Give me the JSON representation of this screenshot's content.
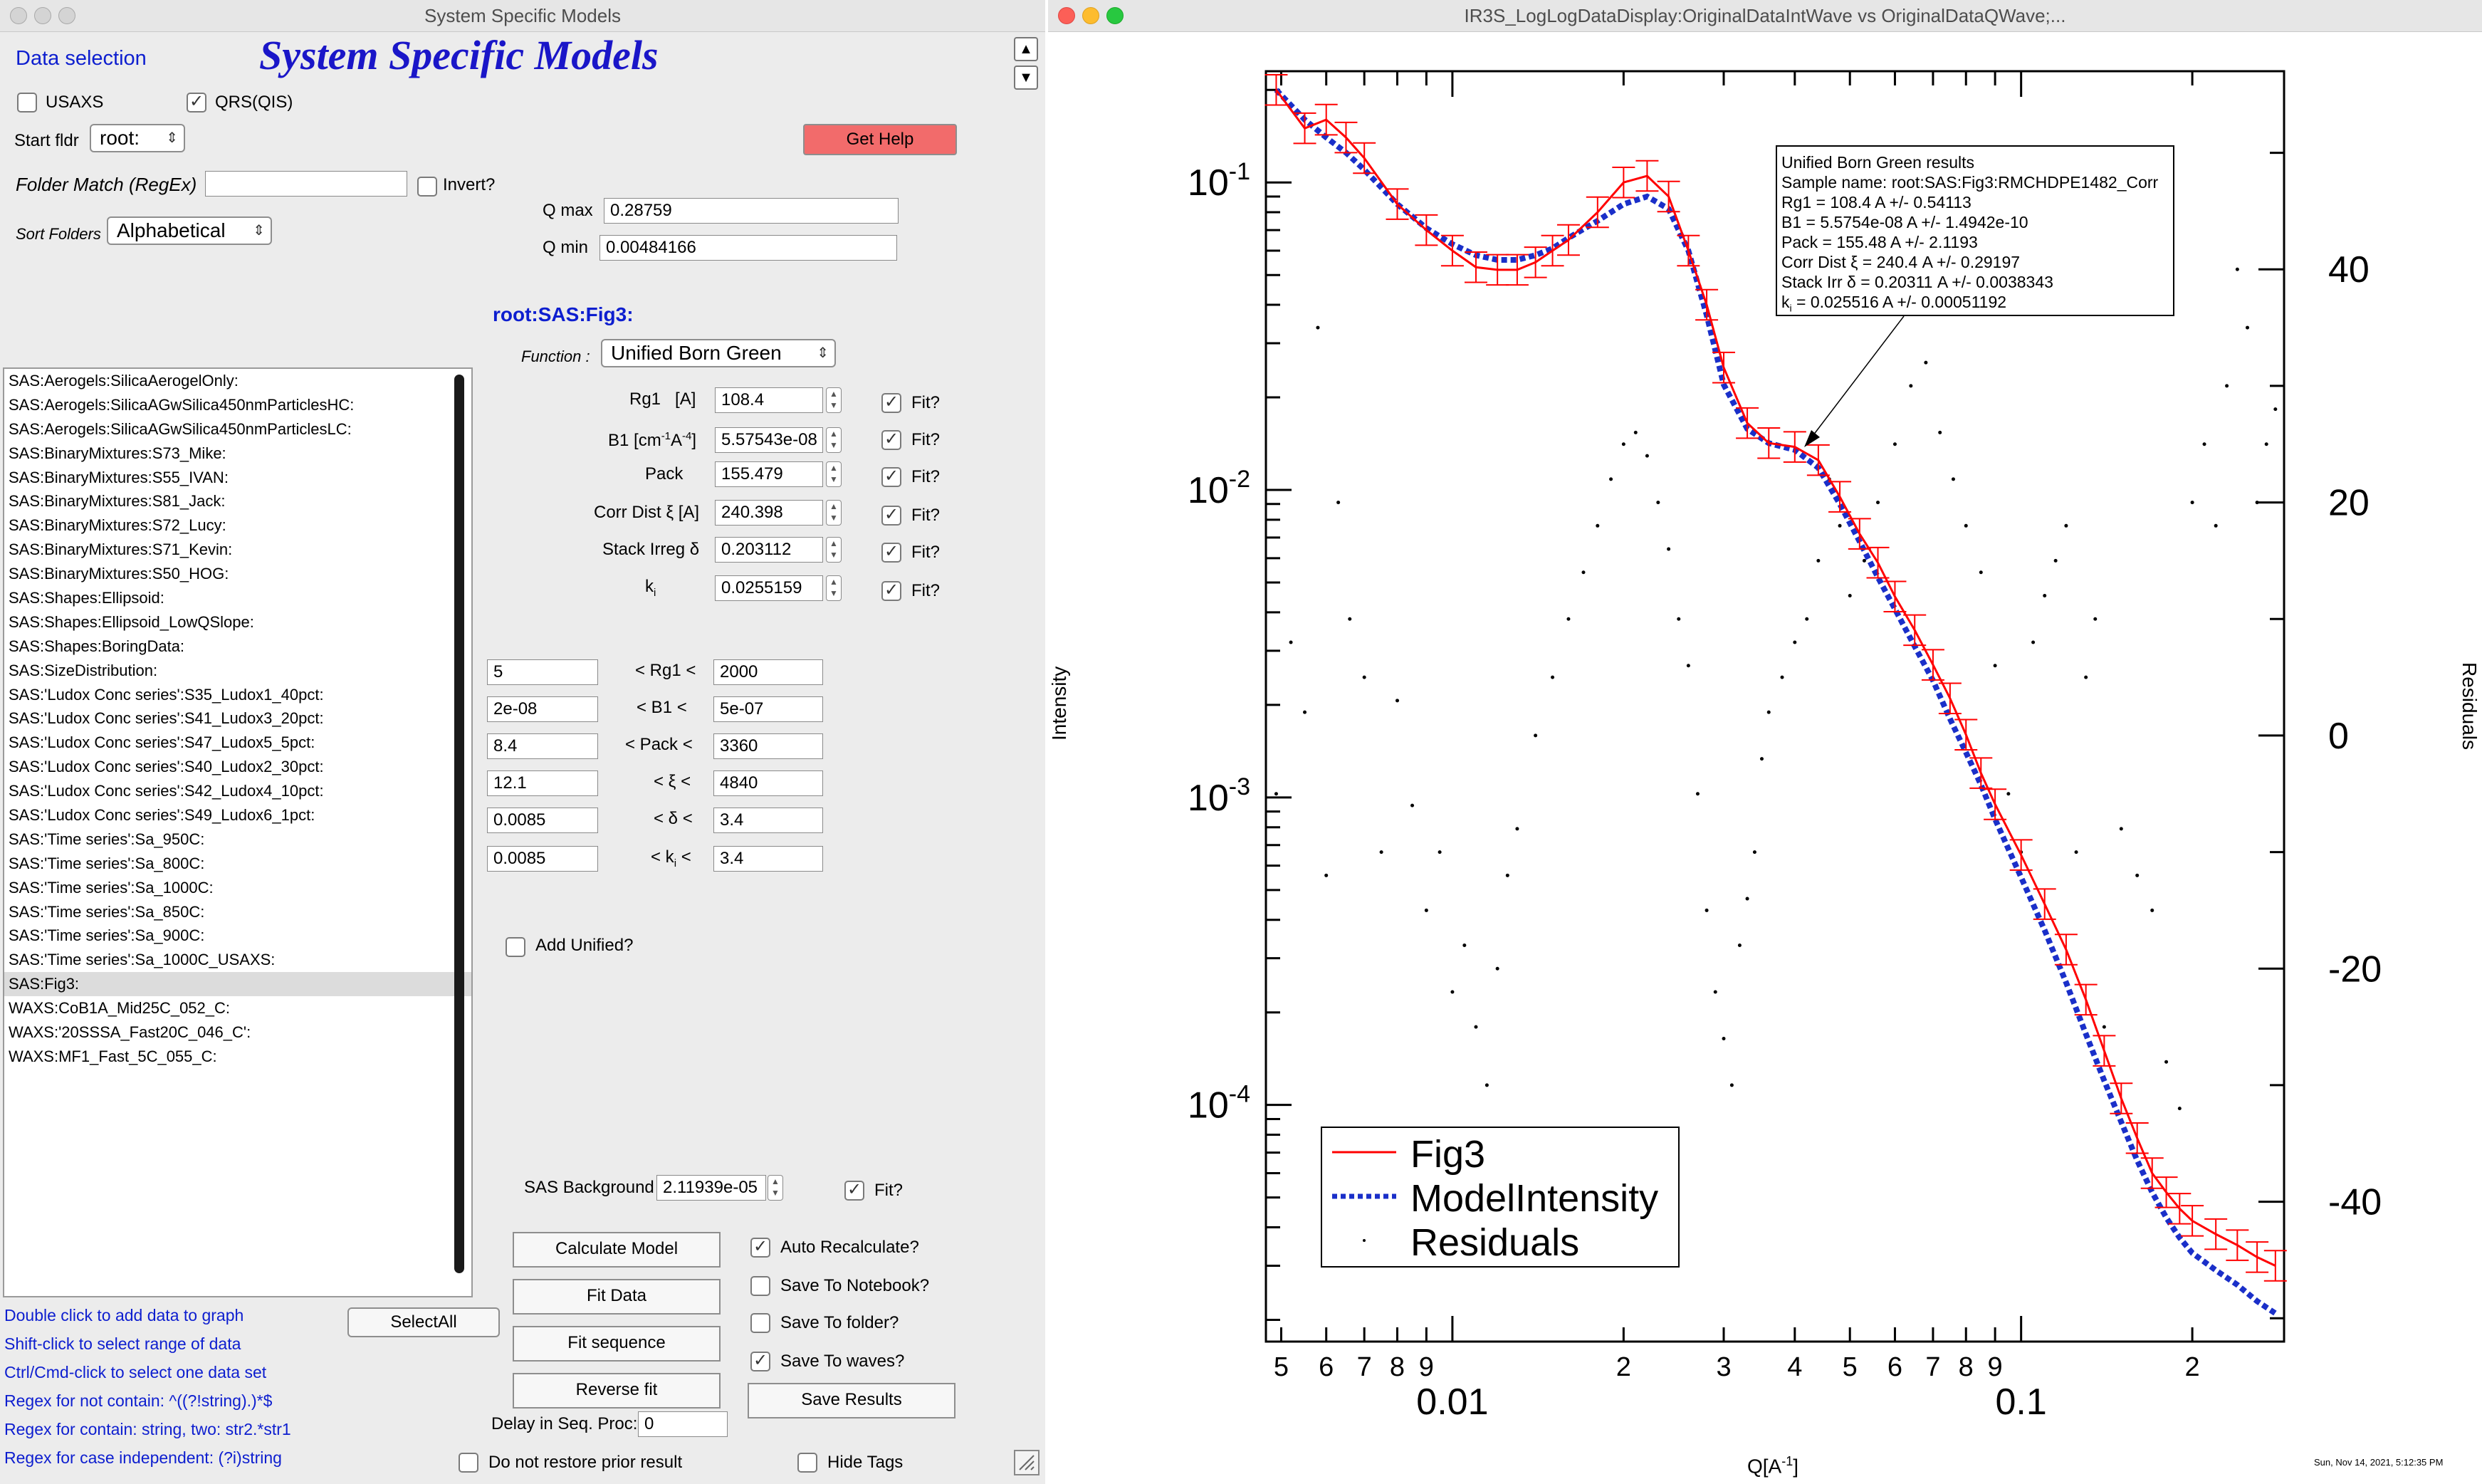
{
  "left_window": {
    "title": "System Specific Models",
    "header": "System Specific Models",
    "data_selection_label": "Data selection",
    "usaxs_label": "USAXS",
    "usaxs_checked": false,
    "qrs_label": "QRS(QIS)",
    "qrs_checked": true,
    "start_folder_label": "Start fldr",
    "start_folder_value": "root:",
    "get_help_label": "Get Help",
    "folder_match_label": "Folder Match (RegEx)",
    "folder_match_value": "",
    "invert_label": "Invert?",
    "sort_folders_label": "Sort Folders",
    "sort_folders_value": "Alphabetical",
    "qmax_label": "Q max",
    "qmax_value": "0.28759",
    "qmin_label": "Q min",
    "qmin_value": "0.00484166",
    "current_folder": "root:SAS:Fig3:",
    "function_label": "Function :",
    "function_value": "Unified Born Green",
    "fit_label": "Fit?",
    "params": [
      {
        "label_main": "Rg1",
        "label_sub": "[A]",
        "value": "108.4",
        "fit": true
      },
      {
        "label_main": "B1 [cm",
        "label_sub": "-1",
        "label_main2": "A",
        "label_sub2": "-4",
        "label_end": "]",
        "value": "5.57543e-08",
        "fit": true
      },
      {
        "label_main": "Pack",
        "value": "155.479",
        "fit": true
      },
      {
        "label_main": "Corr Dist ξ [A]",
        "value": "240.398",
        "fit": true
      },
      {
        "label_main": "Stack Irreg δ",
        "value": "0.203112",
        "fit": true
      },
      {
        "label_main": "k",
        "label_sub": "i",
        "value": "0.0255159",
        "fit": true
      }
    ],
    "limits": [
      {
        "low": "5",
        "label": "< Rg1 <",
        "high": "2000"
      },
      {
        "low": "2e-08",
        "label": "< B1 <",
        "high": "5e-07"
      },
      {
        "low": "8.4",
        "label": "< Pack <",
        "high": "3360"
      },
      {
        "low": "12.1",
        "label": "< ξ <",
        "high": "4840"
      },
      {
        "low": "0.0085",
        "label": "< δ <",
        "high": "3.4"
      },
      {
        "low": "0.0085",
        "label_pre": "< k",
        "label_sub": "i",
        "label_post": " <",
        "high": "3.4"
      }
    ],
    "add_unified_label": "Add Unified?",
    "add_unified_checked": false,
    "sas_background_label": "SAS Background",
    "sas_background_value": "2.11939e-05",
    "sas_background_fit": true,
    "data_list": [
      "SAS:Aerogels:SilicaAerogelOnly:",
      "SAS:Aerogels:SilicaAGwSilica450nmParticlesHC:",
      "SAS:Aerogels:SilicaAGwSilica450nmParticlesLC:",
      "SAS:BinaryMixtures:S73_Mike:",
      "SAS:BinaryMixtures:S55_IVAN:",
      "SAS:BinaryMixtures:S81_Jack:",
      "SAS:BinaryMixtures:S72_Lucy:",
      "SAS:BinaryMixtures:S71_Kevin:",
      "SAS:BinaryMixtures:S50_HOG:",
      "SAS:Shapes:Ellipsoid:",
      "SAS:Shapes:Ellipsoid_LowQSlope:",
      "SAS:Shapes:BoringData:",
      "SAS:SizeDistribution:",
      "SAS:'Ludox Conc series':S35_Ludox1_40pct:",
      "SAS:'Ludox Conc series':S41_Ludox3_20pct:",
      "SAS:'Ludox Conc series':S47_Ludox5_5pct:",
      "SAS:'Ludox Conc series':S40_Ludox2_30pct:",
      "SAS:'Ludox Conc series':S42_Ludox4_10pct:",
      "SAS:'Ludox Conc series':S49_Ludox6_1pct:",
      "SAS:'Time series':Sa_950C:",
      "SAS:'Time series':Sa_800C:",
      "SAS:'Time series':Sa_1000C:",
      "SAS:'Time series':Sa_850C:",
      "SAS:'Time series':Sa_900C:",
      "SAS:'Time series':Sa_1000C_USAXS:",
      "SAS:Fig3:",
      "WAXS:CoB1A_Mid25C_052_C:",
      "WAXS:'20SSSA_Fast20C_046_C':",
      "WAXS:MF1_Fast_5C_055_C:"
    ],
    "selected_index": 25,
    "hints": [
      "Double click to add data to graph",
      "Shift-click to select range of data",
      "Ctrl/Cmd-click to select one data set",
      "Regex for not contain: ^((?!string).)*$",
      "Regex for contain:  string, two: str2.*str1",
      "Regex for case independent:  (?i)string"
    ],
    "select_all_label": "SelectAll",
    "calculate_model_label": "Calculate Model",
    "fit_data_label": "Fit Data",
    "fit_sequence_label": "Fit sequence",
    "reverse_fit_label": "Reverse fit",
    "delay_label": "Delay in Seq. Proc:",
    "delay_value": "0",
    "auto_recalc_label": "Auto Recalculate?",
    "auto_recalc_checked": true,
    "save_notebook_label": "Save To Notebook?",
    "save_notebook_checked": false,
    "save_folder_label": "Save To folder?",
    "save_folder_checked": false,
    "save_waves_label": "Save To waves?",
    "save_waves_checked": true,
    "save_results_label": "Save Results",
    "no_restore_label": "Do not restore prior result",
    "no_restore_checked": false,
    "hide_tags_label": "Hide Tags",
    "hide_tags_checked": false
  },
  "right_window": {
    "title": "IR3S_LogLogDataDisplay:OriginalDataIntWave vs OriginalDataQWave;...",
    "timestamp": "Sun, Nov 14, 2021, 5:12:35 PM",
    "annotation": {
      "lines": [
        "Unified Born Green results",
        "Sample name: root:SAS:Fig3:RMCHDPE1482_Corr",
        "Rg1 = 108.4 A +/- 0.54113",
        "B1 = 5.5754e-08 A +/- 1.4942e-10",
        "Pack = 155.48 A +/- 2.1193",
        "Corr Dist ξ = 240.4 A +/- 0.29197",
        "Stack Irr  δ = 0.20311 A +/- 0.0038343"
      ],
      "last_line_k": "k",
      "last_line_sub": "i",
      "last_line_rest": " = 0.025516 A +/- 0.00051192"
    }
  },
  "chart_data": {
    "type": "line",
    "title": "",
    "xlabel_main": "Q[A",
    "xlabel_sup": "-1",
    "xlabel_end": "]",
    "ylabel": "Intensity",
    "y2label": "Residuals",
    "x_scale": "log",
    "y_scale": "log",
    "xlim": [
      0.0047,
      0.29
    ],
    "ylim": [
      1.7e-05,
      0.23
    ],
    "y2lim": [
      -52,
      57
    ],
    "x_major_ticks": [
      {
        "v": 0.01,
        "label": "0.01"
      },
      {
        "v": 0.1,
        "label": "0.1"
      }
    ],
    "x_minor_ticks": [
      {
        "v": 0.005,
        "label": "5"
      },
      {
        "v": 0.006,
        "label": "6"
      },
      {
        "v": 0.007,
        "label": "7"
      },
      {
        "v": 0.008,
        "label": "8"
      },
      {
        "v": 0.009,
        "label": "9"
      },
      {
        "v": 0.02,
        "label": "2"
      },
      {
        "v": 0.03,
        "label": "3"
      },
      {
        "v": 0.04,
        "label": "4"
      },
      {
        "v": 0.05,
        "label": "5"
      },
      {
        "v": 0.06,
        "label": "6"
      },
      {
        "v": 0.07,
        "label": "7"
      },
      {
        "v": 0.08,
        "label": "8"
      },
      {
        "v": 0.09,
        "label": "9"
      },
      {
        "v": 0.2,
        "label": "2"
      }
    ],
    "y_major_ticks": [
      {
        "v": 0.1,
        "base": "10",
        "exp": "-1"
      },
      {
        "v": 0.01,
        "base": "10",
        "exp": "-2"
      },
      {
        "v": 0.001,
        "base": "10",
        "exp": "-3"
      },
      {
        "v": 0.0001,
        "base": "10",
        "exp": "-4"
      }
    ],
    "y2_ticks": [
      {
        "v": 40,
        "label": "40"
      },
      {
        "v": 20,
        "label": "20"
      },
      {
        "v": 0,
        "label": "0"
      },
      {
        "v": -20,
        "label": "-20"
      },
      {
        "v": -40,
        "label": "-40"
      }
    ],
    "legend": [
      {
        "name": "Fig3",
        "color": "#ff0000",
        "style": "solid"
      },
      {
        "name": "ModelIntensity",
        "color": "#1a2fc9",
        "style": "dotted"
      },
      {
        "name": "Residuals",
        "color": "#000000",
        "style": "dot"
      }
    ],
    "series": [
      {
        "name": "Fig3",
        "color": "#ff0000",
        "x": [
          0.0049,
          0.0055,
          0.006,
          0.0065,
          0.007,
          0.008,
          0.009,
          0.01,
          0.011,
          0.012,
          0.013,
          0.014,
          0.015,
          0.016,
          0.018,
          0.02,
          0.022,
          0.024,
          0.026,
          0.028,
          0.03,
          0.033,
          0.036,
          0.04,
          0.044,
          0.048,
          0.052,
          0.056,
          0.06,
          0.065,
          0.07,
          0.075,
          0.08,
          0.085,
          0.09,
          0.1,
          0.11,
          0.12,
          0.13,
          0.14,
          0.15,
          0.16,
          0.17,
          0.18,
          0.19,
          0.2,
          0.22,
          0.24,
          0.26,
          0.28
        ],
        "y": [
          0.2,
          0.15,
          0.16,
          0.14,
          0.12,
          0.085,
          0.07,
          0.06,
          0.053,
          0.052,
          0.052,
          0.055,
          0.06,
          0.065,
          0.08,
          0.1,
          0.105,
          0.09,
          0.06,
          0.04,
          0.025,
          0.0165,
          0.0142,
          0.0138,
          0.0125,
          0.0095,
          0.0072,
          0.0058,
          0.0045,
          0.0035,
          0.0027,
          0.0021,
          0.0016,
          0.0012,
          0.00095,
          0.00065,
          0.00045,
          0.00032,
          0.00022,
          0.00015,
          0.000105,
          7.8e-05,
          6e-05,
          5.2e-05,
          4.6e-05,
          4.2e-05,
          3.8e-05,
          3.5e-05,
          3.2e-05,
          3e-05
        ]
      },
      {
        "name": "ModelIntensity",
        "color": "#1a2fc9",
        "x": [
          0.0049,
          0.0055,
          0.006,
          0.0065,
          0.007,
          0.008,
          0.009,
          0.01,
          0.011,
          0.012,
          0.013,
          0.014,
          0.015,
          0.016,
          0.018,
          0.02,
          0.022,
          0.024,
          0.026,
          0.028,
          0.03,
          0.033,
          0.036,
          0.04,
          0.044,
          0.048,
          0.052,
          0.056,
          0.06,
          0.065,
          0.07,
          0.075,
          0.08,
          0.085,
          0.09,
          0.1,
          0.11,
          0.12,
          0.13,
          0.14,
          0.15,
          0.16,
          0.17,
          0.18,
          0.19,
          0.2,
          0.22,
          0.24,
          0.26,
          0.28
        ],
        "y": [
          0.2,
          0.16,
          0.14,
          0.125,
          0.11,
          0.085,
          0.071,
          0.063,
          0.058,
          0.056,
          0.056,
          0.058,
          0.061,
          0.066,
          0.075,
          0.085,
          0.09,
          0.082,
          0.06,
          0.037,
          0.022,
          0.0158,
          0.0142,
          0.0135,
          0.0118,
          0.009,
          0.0068,
          0.0052,
          0.0041,
          0.0031,
          0.0024,
          0.0018,
          0.0014,
          0.0011,
          0.00085,
          0.00055,
          0.00037,
          0.00025,
          0.00017,
          0.00012,
          8.8e-05,
          6.6e-05,
          5.2e-05,
          4.3e-05,
          3.7e-05,
          3.3e-05,
          2.9e-05,
          2.6e-05,
          2.3e-05,
          2.1e-05
        ]
      },
      {
        "name": "Residuals",
        "axis": "right",
        "color": "#000000",
        "x": [
          0.0049,
          0.0052,
          0.0055,
          0.0058,
          0.006,
          0.0063,
          0.0066,
          0.007,
          0.0075,
          0.008,
          0.0085,
          0.009,
          0.0095,
          0.01,
          0.0105,
          0.011,
          0.0115,
          0.012,
          0.0125,
          0.013,
          0.014,
          0.015,
          0.016,
          0.017,
          0.018,
          0.019,
          0.02,
          0.021,
          0.022,
          0.023,
          0.024,
          0.025,
          0.026,
          0.027,
          0.028,
          0.029,
          0.03,
          0.031,
          0.032,
          0.033,
          0.034,
          0.035,
          0.036,
          0.038,
          0.04,
          0.042,
          0.044,
          0.046,
          0.048,
          0.05,
          0.053,
          0.056,
          0.06,
          0.064,
          0.068,
          0.072,
          0.076,
          0.08,
          0.085,
          0.09,
          0.095,
          0.1,
          0.105,
          0.11,
          0.115,
          0.12,
          0.125,
          0.13,
          0.135,
          0.14,
          0.15,
          0.16,
          0.17,
          0.18,
          0.19,
          0.2,
          0.21,
          0.22,
          0.23,
          0.24,
          0.25,
          0.26,
          0.27,
          0.28
        ],
        "y": [
          -5,
          8,
          2,
          35,
          -12,
          20,
          10,
          5,
          -10,
          3,
          -6,
          -15,
          -10,
          -22,
          -18,
          -25,
          -30,
          -20,
          -12,
          -8,
          0,
          5,
          10,
          14,
          18,
          22,
          25,
          26,
          24,
          20,
          16,
          10,
          6,
          -5,
          -15,
          -22,
          -26,
          -30,
          -18,
          -14,
          -10,
          -2,
          2,
          5,
          8,
          10,
          15,
          22,
          18,
          12,
          15,
          20,
          25,
          30,
          32,
          26,
          22,
          18,
          14,
          6,
          -5,
          -10,
          8,
          12,
          15,
          18,
          -10,
          5,
          10,
          -25,
          -8,
          -12,
          -15,
          -28,
          -32,
          20,
          25,
          18,
          30,
          40,
          35,
          20,
          25,
          28
        ]
      }
    ]
  }
}
